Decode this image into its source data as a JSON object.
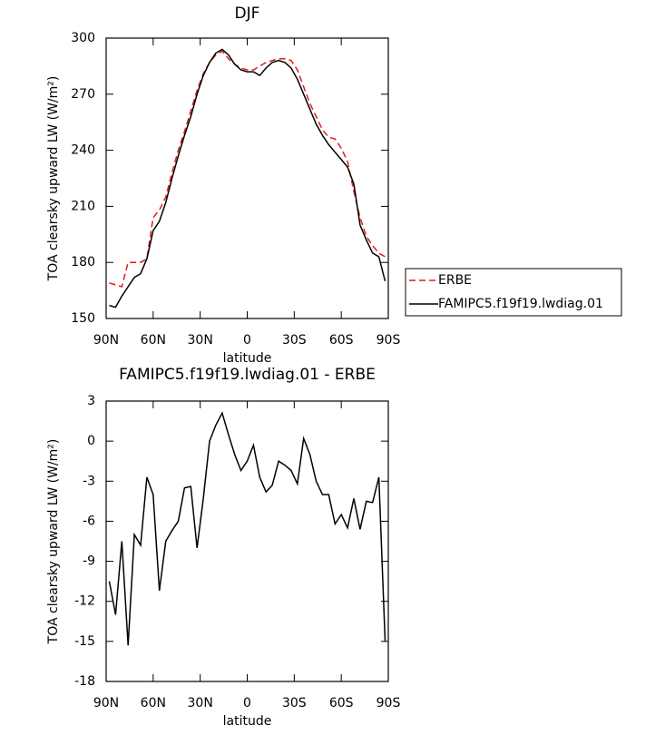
{
  "chart_data": [
    {
      "type": "line",
      "title": "DJF",
      "xlabel": "latitude",
      "ylabel": "TOA clearsky upward LW (W/m²)",
      "x": [
        88,
        84,
        80,
        76,
        72,
        68,
        64,
        60,
        56,
        52,
        48,
        44,
        40,
        36,
        32,
        28,
        24,
        20,
        16,
        12,
        8,
        4,
        0,
        -4,
        -8,
        -12,
        -16,
        -20,
        -24,
        -28,
        -32,
        -36,
        -40,
        -44,
        -48,
        -52,
        -56,
        -60,
        -64,
        -68,
        -72,
        -76,
        -80,
        -84,
        -88
      ],
      "xlim": [
        90,
        -90
      ],
      "xticks": [
        {
          "value": 90,
          "label": "90N"
        },
        {
          "value": 60,
          "label": "60N"
        },
        {
          "value": 30,
          "label": "30N"
        },
        0,
        {
          "value": -30,
          "label": "30S"
        },
        {
          "value": -60,
          "label": "60S"
        },
        {
          "value": -90,
          "label": "90S"
        }
      ],
      "ylim": [
        150,
        300
      ],
      "yticks": [
        150,
        180,
        210,
        240,
        270,
        300
      ],
      "legend": "right",
      "series": [
        {
          "name": "ERBE",
          "color": "#e41a1c",
          "linestyle": "dashed",
          "values": [
            169,
            168,
            167,
            180,
            180,
            180,
            182,
            204,
            208,
            215,
            228,
            240,
            250,
            261,
            272,
            281,
            287,
            291,
            293,
            289,
            286,
            284,
            283,
            283,
            285,
            287,
            288,
            289,
            289,
            288,
            283,
            274,
            265,
            258,
            251,
            247,
            246,
            241,
            234,
            218,
            204,
            194,
            189,
            185,
            183
          ]
        },
        {
          "name": "FAMIPC5.f19f19.lwdiag.01",
          "color": "#000000",
          "linestyle": "solid",
          "values": [
            157,
            156,
            162,
            167,
            172,
            174,
            182,
            197,
            202,
            212,
            225,
            237,
            248,
            258,
            270,
            280,
            287,
            292,
            294,
            291,
            286,
            283,
            282,
            282,
            280,
            284,
            287,
            288,
            287,
            284,
            278,
            270,
            262,
            254,
            248,
            243,
            239,
            235,
            231,
            222,
            200,
            192,
            185,
            183,
            170
          ]
        }
      ]
    },
    {
      "type": "line",
      "title": "FAMIPC5.f19f19.lwdiag.01 - ERBE",
      "xlabel": "latitude",
      "ylabel": "TOA clearsky upward LW (W/m²)",
      "x": [
        88,
        84,
        80,
        76,
        72,
        68,
        64,
        60,
        56,
        52,
        48,
        44,
        40,
        36,
        32,
        28,
        24,
        20,
        16,
        12,
        8,
        4,
        0,
        -4,
        -8,
        -12,
        -16,
        -20,
        -24,
        -28,
        -32,
        -36,
        -40,
        -44,
        -48,
        -52,
        -56,
        -60,
        -64,
        -68,
        -72,
        -76,
        -80,
        -84,
        -88
      ],
      "xlim": [
        90,
        -90
      ],
      "xticks": [
        {
          "value": 90,
          "label": "90N"
        },
        {
          "value": 60,
          "label": "60N"
        },
        {
          "value": 30,
          "label": "30N"
        },
        0,
        {
          "value": -30,
          "label": "30S"
        },
        {
          "value": -60,
          "label": "60S"
        },
        {
          "value": -90,
          "label": "90S"
        }
      ],
      "ylim": [
        -18,
        3
      ],
      "yticks": [
        -18,
        -15,
        -12,
        -9,
        -6,
        -3,
        0,
        3
      ],
      "color": "#000000",
      "values": [
        -10.5,
        -13,
        -7.5,
        -15.3,
        -7,
        -7.8,
        -2.7,
        -4,
        -11.2,
        -7.5,
        -6.7,
        -6,
        -3.5,
        -3.4,
        -8,
        -4.3,
        0,
        1.2,
        2.1,
        0.5,
        -1,
        -2.2,
        -1.5,
        -0.3,
        -2.7,
        -3.8,
        -3.3,
        -1.5,
        -1.8,
        -2.2,
        -3.2,
        0.2,
        -1,
        -3,
        -4,
        -4,
        -6.2,
        -5.5,
        -6.5,
        -4.3,
        -6.6,
        -4.5,
        -4.6,
        -2.7,
        -15
      ]
    }
  ]
}
